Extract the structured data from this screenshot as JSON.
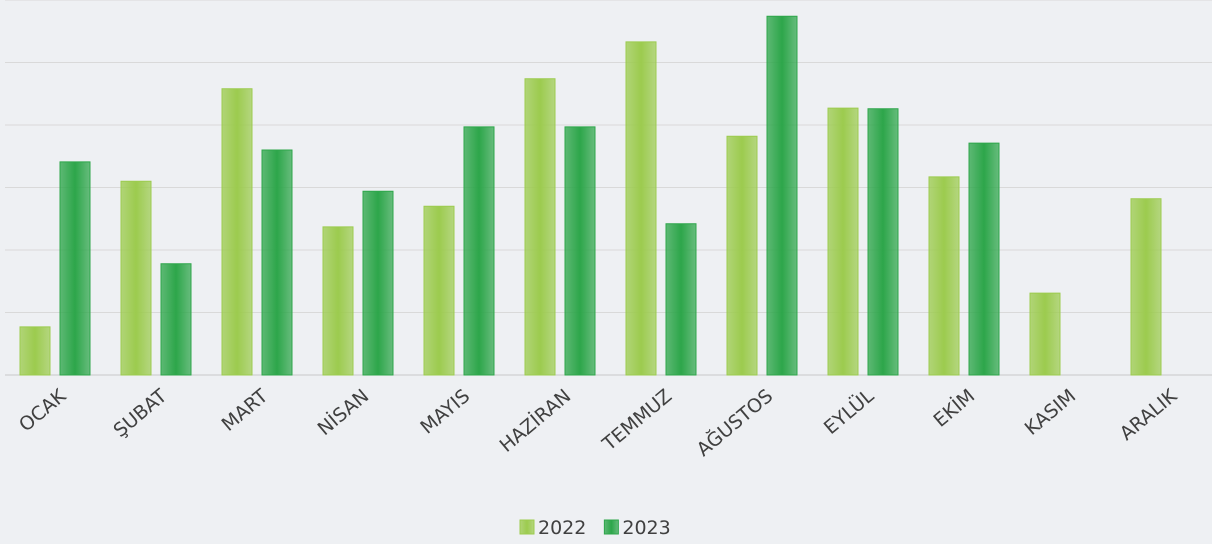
{
  "chart_data": {
    "type": "bar",
    "categories": [
      "OCAK",
      "ŞUBAT",
      "MART",
      "NİSAN",
      "MAYIS",
      "HAZİRAN",
      "TEMMUZ",
      "AĞUSTOS",
      "EYLÜL",
      "EKİM",
      "KASIM",
      "ARALIK"
    ],
    "series": [
      {
        "name": "2022",
        "color": "#9ccb4e",
        "values": [
          0.77,
          3.1,
          4.58,
          2.37,
          2.7,
          4.74,
          5.33,
          3.82,
          4.27,
          3.17,
          1.31,
          2.82
        ]
      },
      {
        "name": "2023",
        "color": "#2da64a",
        "values": [
          3.41,
          1.78,
          3.6,
          2.94,
          3.97,
          3.97,
          2.42,
          5.74,
          4.26,
          3.71,
          null,
          null
        ]
      }
    ],
    "ylim": [
      0,
      6
    ],
    "yticks": [
      0,
      1,
      2,
      3,
      4,
      5,
      6
    ],
    "grid": true,
    "legend": "bottom"
  }
}
